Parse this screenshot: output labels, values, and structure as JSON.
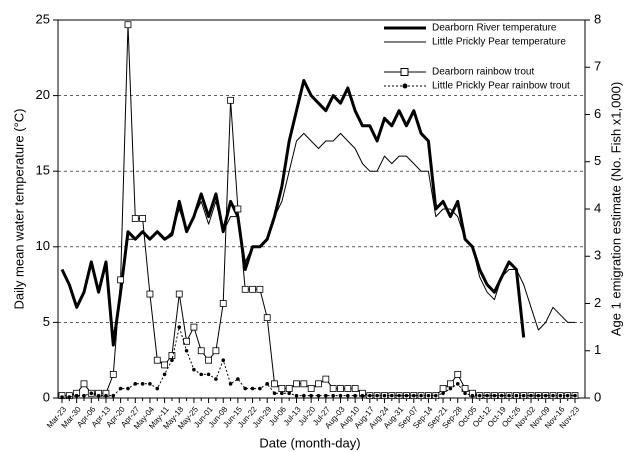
{
  "chart_data": {
    "type": "line",
    "x_label": "Date (month-day)",
    "y_label": "Daily mean water temperature (°C)",
    "y2_label": "Age 1 emigration estimate (No. Fish x1,000)",
    "ylim": [
      0,
      25
    ],
    "yticks": [
      0,
      5,
      10,
      15,
      20,
      25
    ],
    "y2lim": [
      0,
      8
    ],
    "y2ticks": [
      0,
      1,
      2,
      3,
      4,
      5,
      6,
      7,
      8
    ],
    "grid": true,
    "legend": "upper right",
    "categories": [
      "Mar-23",
      null,
      "Mar-30",
      null,
      "Apr-06",
      null,
      "Apr-13",
      null,
      "Apr-20",
      null,
      "Apr-27",
      null,
      "May-04",
      null,
      "May-11",
      null,
      "May-18",
      null,
      "May-25",
      null,
      "Jun-01",
      null,
      "Jun-08",
      null,
      "Jun-15",
      null,
      "Jun-22",
      null,
      "Jun-29",
      null,
      "Jul-06",
      null,
      "Jul-13",
      null,
      "Jul-20",
      null,
      "Jul-27",
      null,
      "Aug-03",
      null,
      "Aug-10",
      null,
      "Aug-17",
      null,
      "Aug-24",
      null,
      "Aug-31",
      null,
      "Sep-07",
      null,
      "Sep-14",
      null,
      "Sep-21",
      null,
      "Sep-28",
      null,
      "Oct-05",
      null,
      "Oct-12",
      null,
      "Oct-19",
      null,
      "Oct-26",
      null,
      "Nov-02",
      null,
      "Nov-09",
      null,
      "Nov-16",
      null,
      "Nov-23"
    ],
    "series": [
      {
        "name": "Dearborn River temperature",
        "color": "#000000",
        "line_width": 3,
        "values": [
          8.5,
          7.5,
          6,
          7,
          9,
          7,
          9,
          3.5,
          7,
          11,
          10.5,
          11,
          10.5,
          11,
          10.5,
          10.8,
          13,
          11,
          12,
          13.5,
          12,
          13.5,
          11,
          13,
          12,
          8.5,
          10,
          10,
          10.5,
          12,
          14,
          17,
          19,
          21,
          20,
          19.5,
          19,
          20,
          19.5,
          20.5,
          19,
          18,
          18,
          17,
          18.5,
          18,
          19,
          18,
          19,
          17.5,
          17,
          12.5,
          13,
          12,
          13,
          10.5,
          10,
          8.5,
          7.5,
          7,
          8,
          9,
          8.5,
          4,
          null,
          null,
          null,
          null,
          null,
          null,
          null
        ]
      },
      {
        "name": "Little Prickly Pear temperature",
        "color": "#000000",
        "line_width": 1,
        "values": [
          8.5,
          7.5,
          6,
          7,
          9,
          7,
          9,
          4,
          7,
          10.5,
          10.5,
          11,
          10.5,
          11,
          10.5,
          11,
          12.5,
          11,
          12,
          13,
          11.5,
          13,
          11,
          12,
          12,
          9,
          10,
          10,
          10.5,
          12,
          13,
          15,
          17,
          17.5,
          17,
          16.5,
          17,
          17,
          17.5,
          17,
          16.5,
          15.5,
          15,
          15,
          16,
          15.5,
          16,
          16,
          15.5,
          15,
          15,
          12,
          12.5,
          12.5,
          12,
          10.5,
          10,
          8,
          7,
          6.5,
          8,
          8.5,
          8.5,
          7.5,
          6,
          4.5,
          5,
          6,
          5.5,
          5,
          5
        ]
      },
      {
        "name": "Dearborn rainbow trout",
        "color": "#000000",
        "line_width": 1,
        "marker": "square",
        "axis": "y2",
        "values": [
          0.05,
          0.05,
          0.1,
          0.3,
          0.1,
          0.1,
          0.1,
          0.5,
          2.5,
          7.9,
          3.8,
          3.8,
          2.2,
          0.8,
          0.7,
          0.9,
          2.2,
          1.2,
          1.5,
          1.0,
          0.8,
          1.0,
          2.0,
          6.3,
          4.0,
          2.3,
          2.3,
          2.3,
          1.7,
          0.3,
          0.2,
          0.2,
          0.3,
          0.3,
          0.2,
          0.3,
          0.4,
          0.2,
          0.2,
          0.2,
          0.2,
          0.1,
          0.05,
          0.05,
          0.05,
          0.05,
          0.05,
          0.05,
          0.05,
          0.05,
          0.05,
          0.05,
          0.2,
          0.3,
          0.5,
          0.2,
          0.1,
          0.05,
          0.05,
          0.05,
          0.05,
          0.05,
          0.05,
          0.05,
          0.05,
          0.05,
          0.05,
          0.05,
          0.05,
          0.05,
          0.05
        ]
      },
      {
        "name": "Little Prickly Pear rainbow trout",
        "color": "#000000",
        "line_width": 1,
        "marker": "circle",
        "dash": true,
        "axis": "y2",
        "values": [
          0.02,
          0.02,
          0.05,
          0.05,
          0.1,
          0.05,
          0.05,
          0.05,
          0.2,
          0.2,
          0.3,
          0.3,
          0.3,
          0.2,
          0.5,
          0.8,
          1.5,
          1.0,
          0.6,
          0.5,
          0.5,
          0.4,
          0.8,
          0.3,
          0.4,
          0.2,
          0.2,
          0.2,
          0.3,
          0.1,
          0.1,
          0.1,
          0.05,
          0.05,
          0.05,
          0.05,
          0.05,
          0.05,
          0.05,
          0.05,
          0.05,
          0.05,
          0.05,
          0.05,
          0.05,
          0.05,
          0.05,
          0.05,
          0.05,
          0.05,
          0.05,
          0.05,
          0.1,
          0.2,
          0.3,
          0.1,
          0.05,
          0.05,
          0.05,
          0.05,
          0.05,
          0.05,
          0.05,
          0.05,
          0.05,
          0.05,
          0.05,
          0.05,
          0.05,
          0.05,
          0.05
        ]
      }
    ]
  }
}
